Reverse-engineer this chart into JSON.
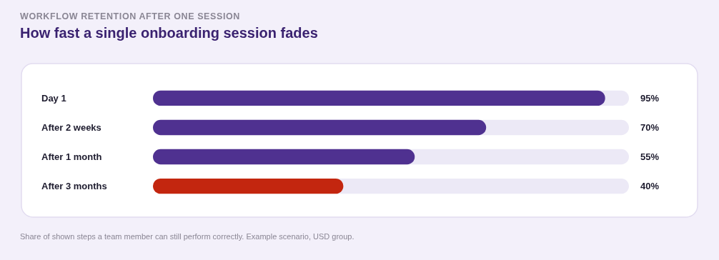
{
  "chart_data": {
    "type": "bar",
    "orientation": "horizontal",
    "subtitle": "WORKFLOW RETENTION AFTER ONE SESSION",
    "title": "How fast a single onboarding session fades",
    "categories": [
      "Day 1",
      "After 2 weeks",
      "After 1 month",
      "After 3 months"
    ],
    "values": [
      95,
      70,
      55,
      40
    ],
    "colors": [
      "#4f3190",
      "#4f3190",
      "#4f3190",
      "#c3260f"
    ],
    "value_labels": [
      "95%",
      "70%",
      "55%",
      "40%"
    ],
    "xlim": [
      0,
      100
    ],
    "annotations": [
      "Share of shown steps a team member can still perform correctly. Example scenario, USD group."
    ]
  }
}
